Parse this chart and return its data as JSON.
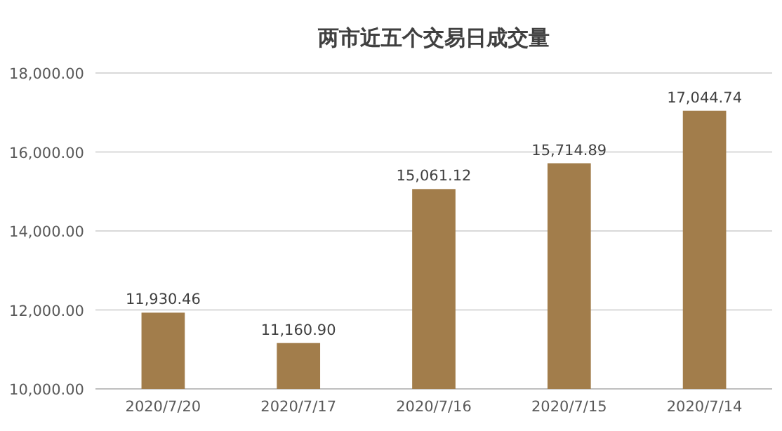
{
  "chart_data": {
    "type": "bar",
    "title": "两市近五个交易日成交量",
    "categories": [
      "2020/7/20",
      "2020/7/17",
      "2020/7/16",
      "2020/7/15",
      "2020/7/14"
    ],
    "values": [
      11930.46,
      11160.9,
      15061.12,
      15714.89,
      17044.74
    ],
    "value_labels": [
      "11,930.46",
      "11,160.90",
      "15,061.12",
      "15,714.89",
      "17,044.74"
    ],
    "color": "#a27d4b",
    "ylim": [
      10000,
      18000
    ],
    "yticks": [
      {
        "value": 10000,
        "label": "10,000.00"
      },
      {
        "value": 12000,
        "label": "12,000.00"
      },
      {
        "value": 14000,
        "label": "14,000.00"
      },
      {
        "value": 16000,
        "label": "16,000.00"
      },
      {
        "value": 18000,
        "label": "18,000.00"
      }
    ],
    "grid": "y"
  }
}
